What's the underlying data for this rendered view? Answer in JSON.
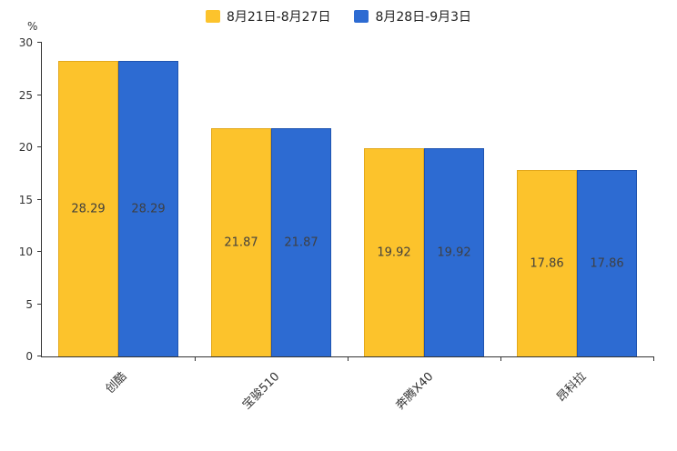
{
  "chart_data": {
    "type": "bar",
    "title": "",
    "categories": [
      "创酷",
      "宝骏510",
      "奔腾X40",
      "昂科拉"
    ],
    "series": [
      {
        "name": "8月21日-8月27日",
        "color": "#FCC32C",
        "border_color": "#E3A81C",
        "values": [
          28.29,
          21.87,
          19.92,
          17.86
        ]
      },
      {
        "name": "8月28日-9月3日",
        "color": "#2D6BD2",
        "border_color": "#1F54B0",
        "values": [
          28.29,
          21.87,
          19.92,
          17.86
        ]
      }
    ],
    "xlabel": "",
    "ylabel": "%",
    "ylim": [
      0,
      30
    ],
    "yticks": [
      0,
      5,
      10,
      15,
      20,
      25,
      30
    ],
    "legend_position": "top",
    "grid": false,
    "value_labels_shown": true
  }
}
